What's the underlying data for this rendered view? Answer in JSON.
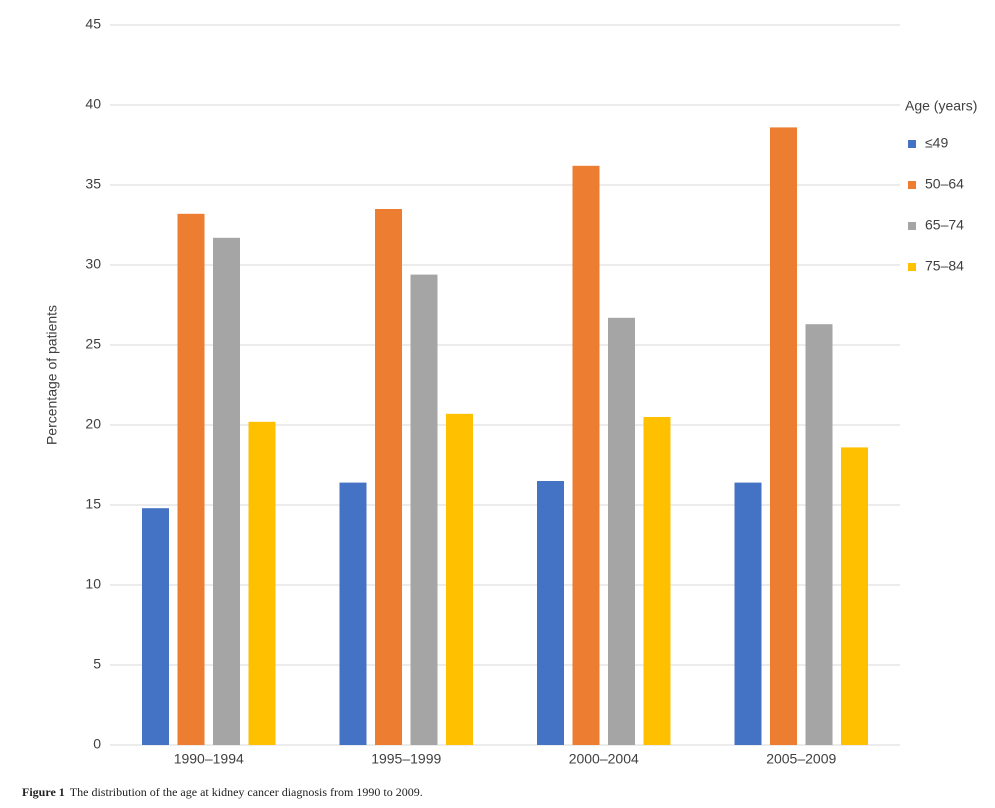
{
  "chart_data": {
    "type": "bar",
    "y_label": "Percentage of patients",
    "legend_title": "Age (years)",
    "legend": "right",
    "caption_label": "Figure 1",
    "caption": "The distribution of the age at kidney cancer diagnosis from 1990 to 2009.",
    "categories": [
      "1990–1994",
      "1995–1999",
      "2000–2004",
      "2005–2009"
    ],
    "series": [
      {
        "name": "≤49",
        "color": "#4472c4",
        "values": [
          14.8,
          16.4,
          16.5,
          16.4
        ]
      },
      {
        "name": "50–64",
        "color": "#ed7d31",
        "values": [
          33.2,
          33.5,
          36.2,
          38.6
        ]
      },
      {
        "name": "65–74",
        "color": "#a5a5a5",
        "values": [
          31.7,
          29.4,
          26.7,
          26.3
        ]
      },
      {
        "name": "75–84",
        "color": "#ffc000",
        "values": [
          20.2,
          20.7,
          20.5,
          18.6
        ]
      }
    ],
    "ylim": [
      0,
      45
    ],
    "yticks": [
      0,
      5,
      10,
      15,
      20,
      25,
      30,
      35,
      40,
      45
    ],
    "grid": true
  }
}
